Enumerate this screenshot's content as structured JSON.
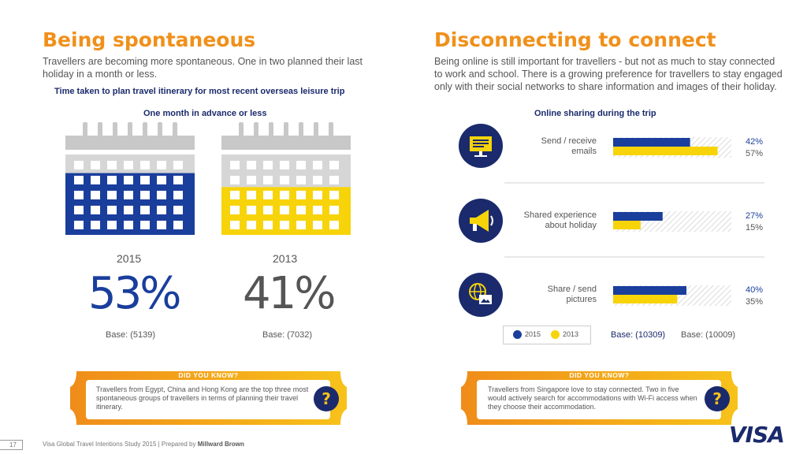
{
  "left": {
    "title": "Being spontaneous",
    "intro_line1": "Travellers are becoming more spontaneous. One in two planned their last",
    "intro_line2": "holiday in a month or less.",
    "chart_title": "Time taken to plan travel itinerary for most recent overseas leisure trip",
    "chart_subtitle": "One month in advance or less",
    "y2015": "2015",
    "y2013": "2013",
    "big2015": "53%",
    "big2013": "41%",
    "base2015": "Base: (5139)",
    "base2013": "Base: (7032)",
    "dyk_title": "DID YOU KNOW?",
    "dyk_text": "Travellers from Egypt, China and Hong Kong are the top three most spontaneous groups of travellers in terms of planning their travel itinerary."
  },
  "right": {
    "title": "Disconnecting to connect",
    "intro_line1": "Being online is still important for travellers - but not as much to stay connected",
    "intro_line2": "to work and school. There is a growing preference for travellers to stay engaged",
    "intro_line3": "only with their social networks to share information and images of their holiday.",
    "chart_subtitle": "Online sharing during the trip",
    "legend_2015": "2015",
    "legend_2013": "2013",
    "base2015": "Base: (10309)",
    "base2013": "Base: (10009)",
    "dyk_title": "DID YOU KNOW?",
    "dyk_text": "Travellers from Singapore love to stay connected. Two in five would actively search for accommodations with Wi-Fi access when they choose their accommodation."
  },
  "chart_data": [
    {
      "type": "bar",
      "title": "Time taken to plan travel itinerary for most recent overseas leisure trip",
      "subtitle": "One month in advance or less",
      "categories": [
        "2015",
        "2013"
      ],
      "values": [
        53,
        41
      ],
      "unit": "%"
    },
    {
      "type": "bar",
      "title": "Online sharing during the trip",
      "categories": [
        "Send / receive emails",
        "Shared experience about holiday",
        "Share / send pictures"
      ],
      "series": [
        {
          "name": "2015",
          "values": [
            42,
            27,
            40
          ],
          "color": "#1a3e9c"
        },
        {
          "name": "2013",
          "values": [
            57,
            15,
            35
          ],
          "color": "#f7d40a"
        }
      ],
      "labels": {
        "s2015": [
          "42%",
          "27%",
          "40%"
        ],
        "s2013": [
          "57%",
          "15%",
          "35%"
        ]
      },
      "cat_lines": [
        [
          "Send / receive",
          "emails"
        ],
        [
          "Shared experience",
          "about holiday"
        ],
        [
          "Share / send",
          "pictures"
        ]
      ],
      "ylim": [
        0,
        100
      ]
    }
  ],
  "footer": {
    "page": "17",
    "text": "Visa Global Travel Intentions Study 2015 | Prepared by ",
    "bold": "Millward Brown",
    "logo": "VISA"
  },
  "colors": {
    "orange": "#f0901a",
    "navy": "#1a2a6c",
    "blue2015": "#1a3e9c",
    "yellow2013": "#f7d40a",
    "gray": "#c8c8c8"
  }
}
